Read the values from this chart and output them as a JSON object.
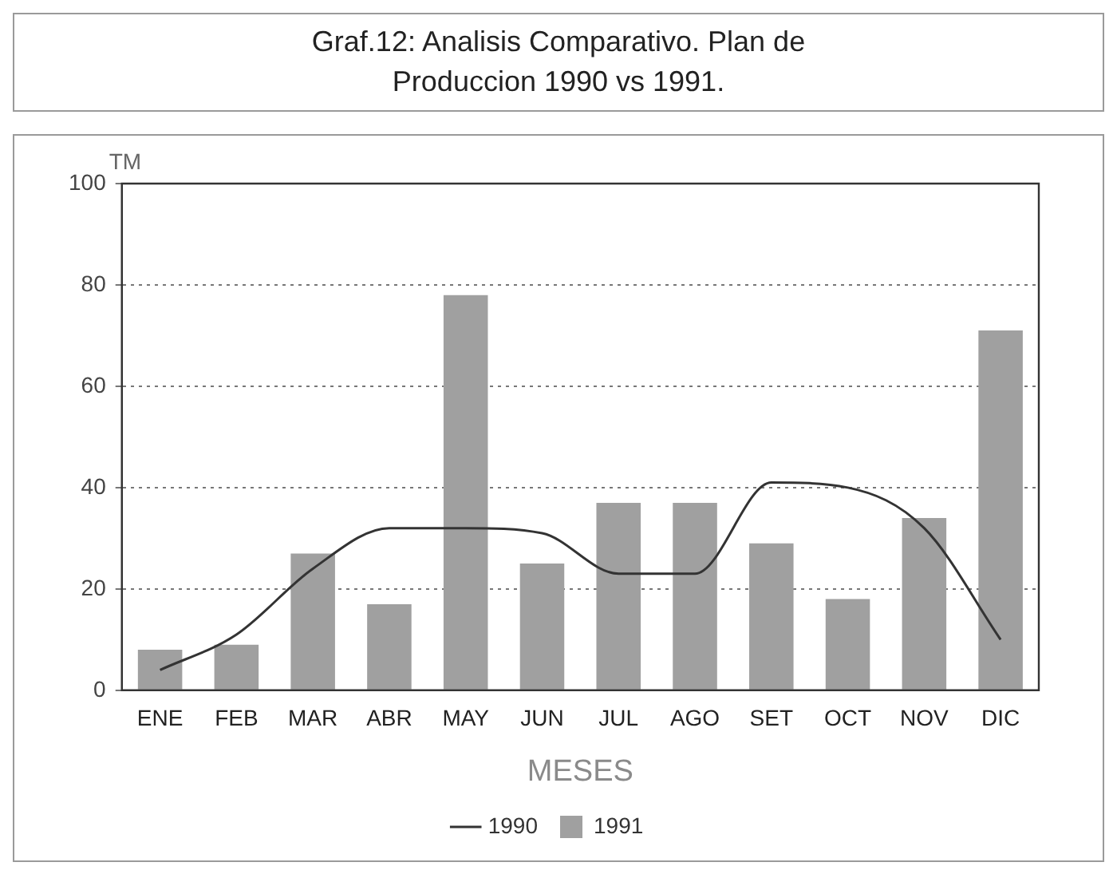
{
  "chart_data": {
    "type": "bar",
    "title": "Graf.12: Analisis Comparativo. Plan de Produccion 1990 vs 1991.",
    "xlabel": "MESES",
    "ylabel": "TM",
    "categories": [
      "ENE",
      "FEB",
      "MAR",
      "ABR",
      "MAY",
      "JUN",
      "JUL",
      "AGO",
      "SET",
      "OCT",
      "NOV",
      "DIC"
    ],
    "series": [
      {
        "name": "1990",
        "type": "line",
        "color": "#333333",
        "values": [
          4,
          11,
          24,
          32,
          32,
          31,
          23,
          23,
          41,
          40,
          32,
          10
        ]
      },
      {
        "name": "1991",
        "color": "#a0a0a0",
        "values": [
          8,
          9,
          27,
          17,
          78,
          25,
          37,
          37,
          29,
          18,
          34,
          71
        ]
      }
    ],
    "ylim": [
      0,
      100
    ],
    "yticks": [
      0,
      20,
      40,
      60,
      80,
      100
    ],
    "grid": "y",
    "legend": "bottom",
    "marker": "none"
  }
}
